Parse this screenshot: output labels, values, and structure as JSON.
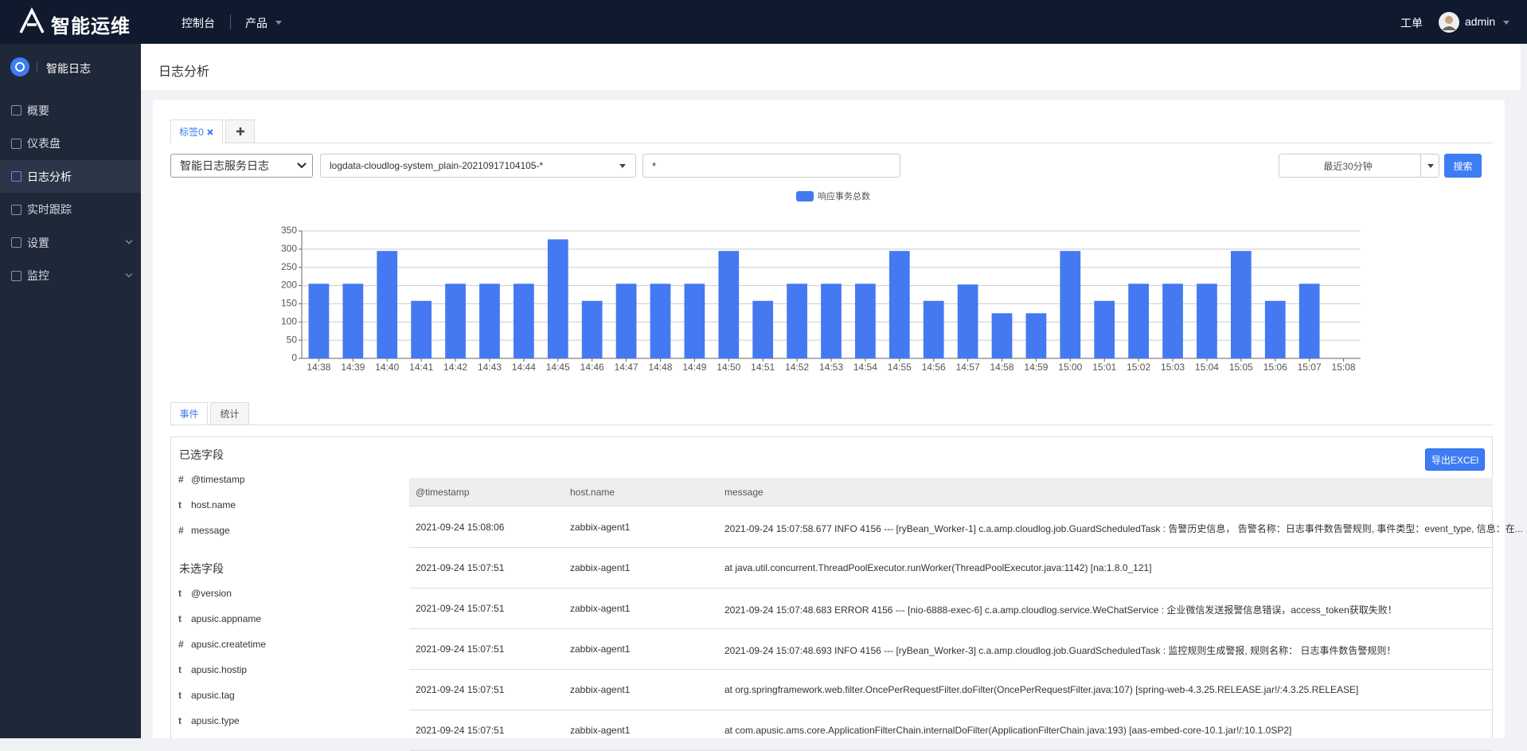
{
  "topbar": {
    "logo": "智能运维",
    "nav": [
      "控制台",
      "产品"
    ],
    "ticket": "工单",
    "user": "admin"
  },
  "sidebar": {
    "app": "智能日志",
    "menu": [
      {
        "label": "概要"
      },
      {
        "label": "仪表盘"
      },
      {
        "label": "日志分析",
        "active": true
      },
      {
        "label": "实时跟踪"
      },
      {
        "label": "设置",
        "has_submenu": true
      },
      {
        "label": "监控",
        "has_submenu": true
      }
    ]
  },
  "page_title": "日志分析",
  "query_tabs": [
    "标签0"
  ],
  "filters": {
    "source": "智能日志服务日志",
    "index": "logdata-cloudlog-system_plain-20210917104105-*",
    "query": "*",
    "time_range": "最近30分钟",
    "search": "搜索"
  },
  "chart_data": {
    "type": "bar",
    "categories": [
      "14:38",
      "14:39",
      "14:40",
      "14:41",
      "14:42",
      "14:43",
      "14:44",
      "14:45",
      "14:46",
      "14:47",
      "14:48",
      "14:49",
      "14:50",
      "14:51",
      "14:52",
      "14:53",
      "14:54",
      "14:55",
      "14:56",
      "14:57",
      "14:58",
      "14:59",
      "15:00",
      "15:01",
      "15:02",
      "15:03",
      "15:04",
      "15:05",
      "15:06",
      "15:07",
      "15:08"
    ],
    "series": [
      {
        "name": "响应事务总数",
        "color": "#4479f2",
        "values": [
          205,
          205,
          295,
          158,
          205,
          205,
          205,
          327,
          158,
          205,
          205,
          205,
          295,
          158,
          205,
          205,
          205,
          295,
          158,
          203,
          124,
          124,
          295,
          158,
          205,
          205,
          205,
          295,
          158,
          205,
          null
        ]
      }
    ],
    "ylim": [
      0,
      350
    ],
    "yticks": [
      0,
      50,
      100,
      150,
      200,
      250,
      300,
      350
    ],
    "grid": true,
    "legend": "top"
  },
  "result_tabs": [
    "事件",
    "统计"
  ],
  "export": "导出EXCEl",
  "selected_fields": {
    "title": "已选字段",
    "fields": [
      {
        "type": "#",
        "name": "@timestamp"
      },
      {
        "type": "t",
        "name": "host.name"
      },
      {
        "type": "#",
        "name": "message"
      }
    ]
  },
  "unselected_fields": {
    "title": "未选字段",
    "fields": [
      {
        "type": "t",
        "name": "@version"
      },
      {
        "type": "t",
        "name": "apusic.appname"
      },
      {
        "type": "#",
        "name": "apusic.createtime"
      },
      {
        "type": "t",
        "name": "apusic.hostip"
      },
      {
        "type": "t",
        "name": "apusic.tag"
      },
      {
        "type": "t",
        "name": "apusic.type"
      }
    ]
  },
  "table": {
    "columns": [
      "@timestamp",
      "host.name",
      "message"
    ],
    "rows": [
      [
        "2021-09-24 15:08:06",
        "zabbix-agent1",
        "2021-09-24 15:07:58.677 INFO 4156 --- [ryBean_Worker-1] c.a.amp.cloudlog.job.GuardScheduledTask : 告警历史信息， 告警名称：日志事件数告警规则, 事件类型：event_type, 信息：在..."
      ],
      [
        "2021-09-24 15:07:51",
        "zabbix-agent1",
        "at java.util.concurrent.ThreadPoolExecutor.runWorker(ThreadPoolExecutor.java:1142) [na:1.8.0_121]"
      ],
      [
        "2021-09-24 15:07:51",
        "zabbix-agent1",
        "2021-09-24 15:07:48.683 ERROR 4156 --- [nio-6888-exec-6] c.a.amp.cloudlog.service.WeChatService : 企业微信发送报警信息错误，access_token获取失败！"
      ],
      [
        "2021-09-24 15:07:51",
        "zabbix-agent1",
        "2021-09-24 15:07:48.693 INFO 4156 --- [ryBean_Worker-3] c.a.amp.cloudlog.job.GuardScheduledTask : 监控规则生成警报, 规则名称： 日志事件数告警规则！"
      ],
      [
        "2021-09-24 15:07:51",
        "zabbix-agent1",
        "at org.springframework.web.filter.OncePerRequestFilter.doFilter(OncePerRequestFilter.java:107) [spring-web-4.3.25.RELEASE.jar!/:4.3.25.RELEASE]"
      ],
      [
        "2021-09-24 15:07:51",
        "zabbix-agent1",
        "at com.apusic.ams.core.ApplicationFilterChain.internalDoFilter(ApplicationFilterChain.java:193) [aas-embed-core-10.1.jar!/:10.1.0SP2]"
      ]
    ]
  }
}
